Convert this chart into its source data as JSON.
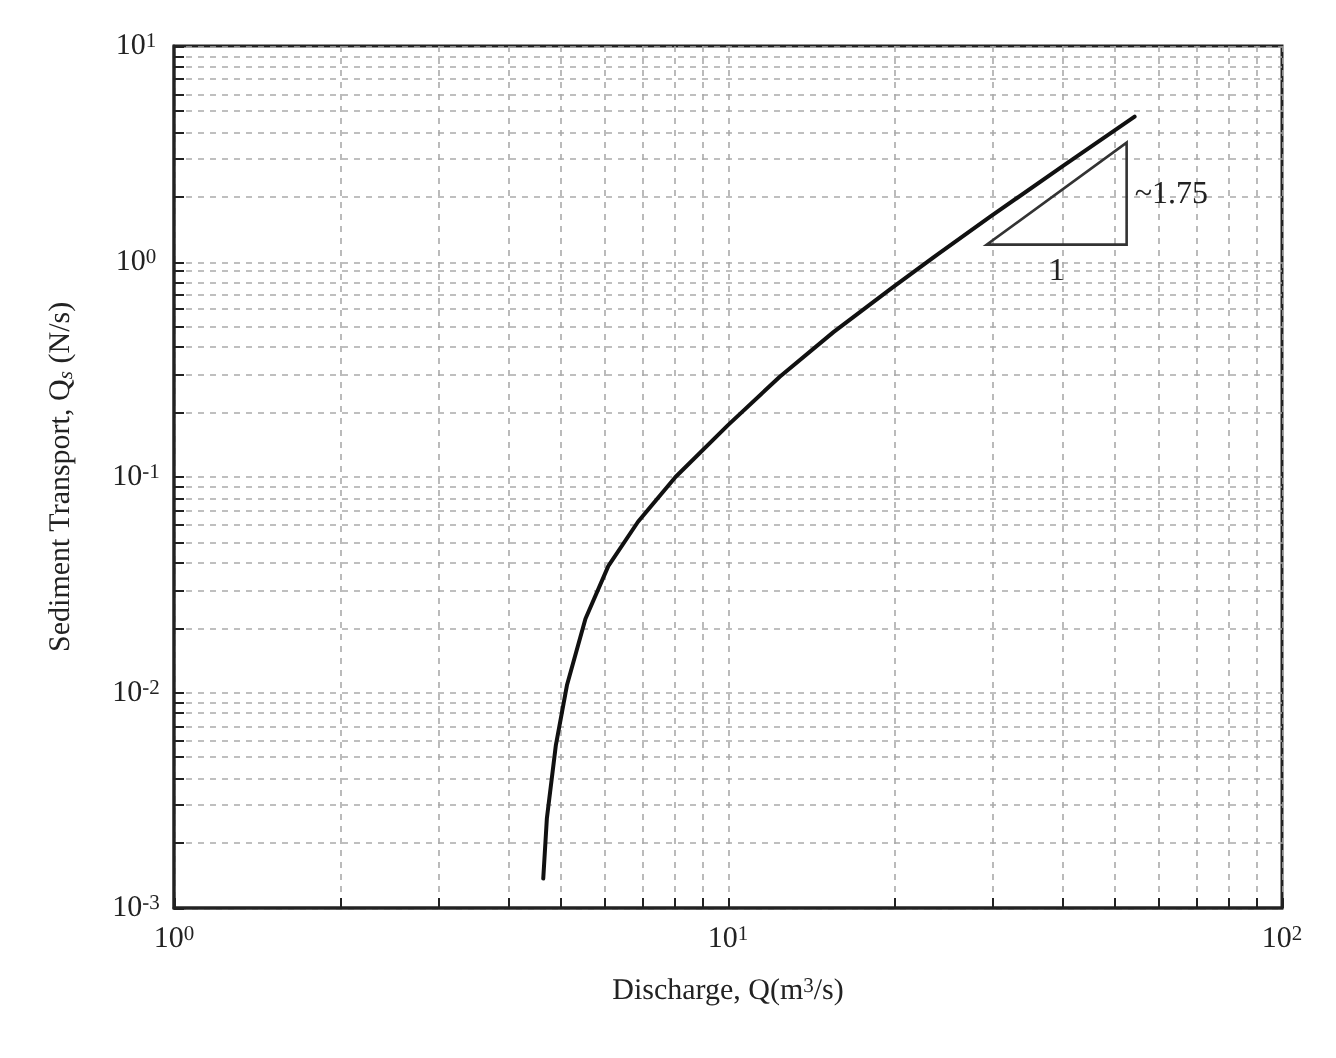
{
  "chart_data": {
    "type": "line",
    "xlabel": "Discharge, Q(m$^{3}$/s)",
    "ylabel": "Sediment Transport, Q$_{s}$ (N/s)",
    "log": "xy",
    "grid": true,
    "line_style": "solid",
    "marker": "none",
    "xlim": [
      1,
      100
    ],
    "ylim": [
      0.001,
      10
    ],
    "xticks": [
      {
        "value": 1,
        "label": "10$^{0}$"
      },
      {
        "value": 2,
        "label": null
      },
      {
        "value": 3,
        "label": null
      },
      {
        "value": 4,
        "label": null
      },
      {
        "value": 5,
        "label": null
      },
      {
        "value": 6,
        "label": null
      },
      {
        "value": 7,
        "label": null
      },
      {
        "value": 8,
        "label": null
      },
      {
        "value": 9,
        "label": null
      },
      {
        "value": 10,
        "label": "10$^{1}$"
      },
      {
        "value": 20,
        "label": null
      },
      {
        "value": 30,
        "label": null
      },
      {
        "value": 40,
        "label": null
      },
      {
        "value": 50,
        "label": null
      },
      {
        "value": 60,
        "label": null
      },
      {
        "value": 70,
        "label": null
      },
      {
        "value": 80,
        "label": null
      },
      {
        "value": 90,
        "label": null
      },
      {
        "value": 100,
        "label": "10$^{2}$"
      }
    ],
    "yticks": [
      {
        "value": 0.001,
        "label": "10$^{-3}$"
      },
      {
        "value": 0.002,
        "label": null
      },
      {
        "value": 0.003,
        "label": null
      },
      {
        "value": 0.004,
        "label": null
      },
      {
        "value": 0.005,
        "label": null
      },
      {
        "value": 0.006,
        "label": null
      },
      {
        "value": 0.007,
        "label": null
      },
      {
        "value": 0.008,
        "label": null
      },
      {
        "value": 0.009,
        "label": null
      },
      {
        "value": 0.01,
        "label": "10$^{-2}$"
      },
      {
        "value": 0.02,
        "label": null
      },
      {
        "value": 0.03,
        "label": null
      },
      {
        "value": 0.04,
        "label": null
      },
      {
        "value": 0.05,
        "label": null
      },
      {
        "value": 0.06,
        "label": null
      },
      {
        "value": 0.07,
        "label": null
      },
      {
        "value": 0.08,
        "label": null
      },
      {
        "value": 0.09,
        "label": null
      },
      {
        "value": 0.1,
        "label": "10$^{-1}$"
      },
      {
        "value": 0.2,
        "label": null
      },
      {
        "value": 0.3,
        "label": null
      },
      {
        "value": 0.4,
        "label": null
      },
      {
        "value": 0.5,
        "label": null
      },
      {
        "value": 0.6,
        "label": null
      },
      {
        "value": 0.7,
        "label": null
      },
      {
        "value": 0.8,
        "label": null
      },
      {
        "value": 0.9,
        "label": null
      },
      {
        "value": 1,
        "label": "10$^{0}$"
      },
      {
        "value": 2,
        "label": null
      },
      {
        "value": 3,
        "label": null
      },
      {
        "value": 4,
        "label": null
      },
      {
        "value": 5,
        "label": null
      },
      {
        "value": 6,
        "label": null
      },
      {
        "value": 7,
        "label": null
      },
      {
        "value": 8,
        "label": null
      },
      {
        "value": 9,
        "label": null
      },
      {
        "value": 10,
        "label": "10$^{1}$"
      }
    ],
    "series": [
      {
        "color": "#111111",
        "x": [
          4.64,
          4.71,
          4.89,
          5.12,
          5.53,
          6.08,
          6.88,
          8.04,
          10.0,
          12.4,
          15.5,
          19.8,
          23.9,
          29.7,
          40.5,
          54.2
        ],
        "values": [
          0.00137,
          0.0026,
          0.0057,
          0.0108,
          0.022,
          0.0386,
          0.062,
          0.1,
          0.174,
          0.292,
          0.47,
          0.757,
          1.08,
          1.61,
          2.81,
          4.7
        ]
      }
    ],
    "annotations": [
      "~1.75",
      "1"
    ]
  }
}
